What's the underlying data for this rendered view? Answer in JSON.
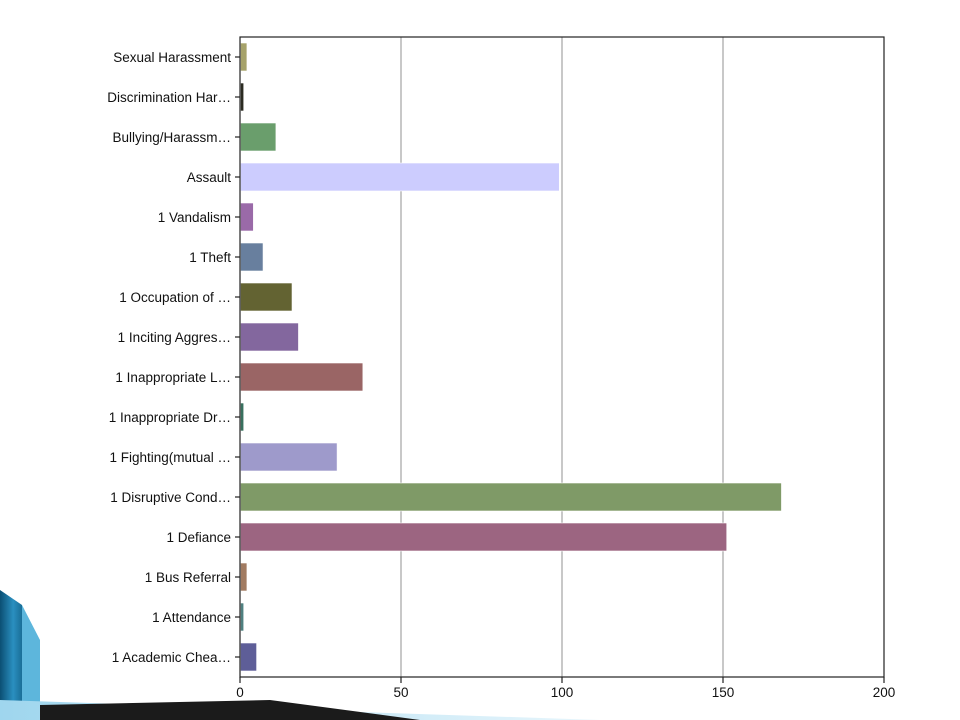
{
  "chart_data": {
    "type": "bar",
    "orientation": "horizontal",
    "categories": [
      "Sexual Harassment",
      "Discrimination Har…",
      "Bullying/Harassm…",
      "Assault",
      "1 Vandalism",
      "1 Theft",
      "1 Occupation of …",
      "1 Inciting Aggres…",
      "1 Inappropriate L…",
      "1 Inappropriate Dr…",
      "1 Fighting(mutual …",
      "1 Disruptive Cond…",
      "1 Defiance",
      "1 Bus Referral",
      "1 Attendance",
      "1 Academic Chea…"
    ],
    "values": [
      2,
      1,
      11,
      99,
      4,
      7,
      16,
      18,
      38,
      1,
      30,
      168,
      151,
      2,
      1,
      5
    ],
    "colors": [
      "#a6a26a",
      "#2b2b22",
      "#6a9e6c",
      "#ccccfe",
      "#9a6aa8",
      "#687f9e",
      "#636332",
      "#83679e",
      "#9a6565",
      "#38705e",
      "#9e9acb",
      "#7f9a67",
      "#9c6581",
      "#a17b61",
      "#4f8080",
      "#5e5e98"
    ],
    "xlim": [
      0,
      200
    ],
    "xticks": [
      0,
      50,
      100,
      150,
      200
    ],
    "title": "",
    "xlabel": "",
    "ylabel": "",
    "grid": "vertical",
    "legend": "none"
  }
}
